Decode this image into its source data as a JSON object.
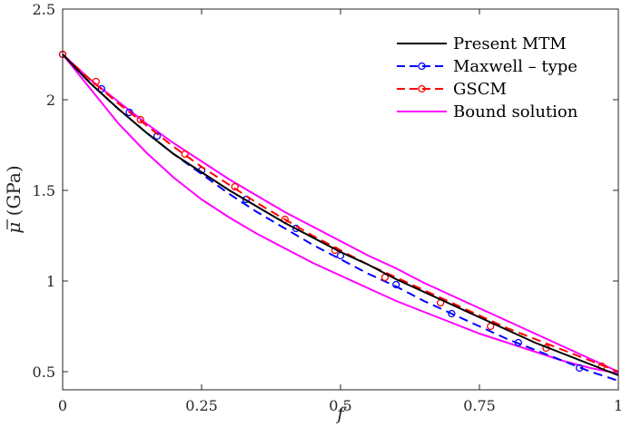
{
  "chart_data": {
    "type": "line",
    "xlabel": "f",
    "ylabel_symbol": "μ",
    "ylabel_unit": "(GPa)",
    "xlim": [
      0,
      1
    ],
    "ylim": [
      0.4,
      2.5
    ],
    "xticks": [
      0,
      0.25,
      0.5,
      0.75,
      1
    ],
    "xtick_labels": [
      "0",
      "0.25",
      "0.5",
      "0.75",
      "1"
    ],
    "yticks": [
      0.5,
      1,
      1.5,
      2,
      2.5
    ],
    "ytick_labels": [
      "0.5",
      "1",
      "1.5",
      "2",
      "2.5"
    ],
    "legend_position": "top-right",
    "series": [
      {
        "name": "Present MTM",
        "color": "#000000",
        "dash": "none",
        "marker": "none",
        "x": [
          0,
          0.05,
          0.1,
          0.15,
          0.2,
          0.25,
          0.3,
          0.35,
          0.4,
          0.45,
          0.5,
          0.55,
          0.6,
          0.65,
          0.7,
          0.75,
          0.8,
          0.85,
          0.9,
          0.95,
          1
        ],
        "y": [
          2.25,
          2.09,
          1.95,
          1.82,
          1.7,
          1.6,
          1.5,
          1.41,
          1.32,
          1.24,
          1.16,
          1.09,
          1.01,
          0.94,
          0.87,
          0.8,
          0.73,
          0.66,
          0.6,
          0.54,
          0.48
        ]
      },
      {
        "name": "Maxwell – type",
        "color": "#0000ff",
        "dash": "dashed",
        "marker": "circle",
        "x": [
          0,
          0.05,
          0.1,
          0.15,
          0.2,
          0.25,
          0.3,
          0.35,
          0.4,
          0.45,
          0.5,
          0.55,
          0.6,
          0.65,
          0.7,
          0.75,
          0.8,
          0.85,
          0.9,
          0.95,
          1
        ],
        "y": [
          2.25,
          2.09,
          1.95,
          1.82,
          1.7,
          1.59,
          1.48,
          1.38,
          1.29,
          1.2,
          1.12,
          1.04,
          0.97,
          0.89,
          0.82,
          0.75,
          0.68,
          0.62,
          0.56,
          0.5,
          0.45
        ],
        "marker_x": [
          0,
          0.07,
          0.12,
          0.17,
          0.25,
          0.33,
          0.42,
          0.5,
          0.6,
          0.7,
          0.82,
          0.93
        ],
        "marker_y": [
          2.25,
          2.06,
          1.93,
          1.8,
          1.61,
          1.45,
          1.29,
          1.14,
          0.98,
          0.82,
          0.66,
          0.52
        ]
      },
      {
        "name": "GSCM",
        "color": "#ff0000",
        "dash": "dashed",
        "marker": "circle",
        "x": [
          0,
          0.05,
          0.1,
          0.15,
          0.2,
          0.25,
          0.3,
          0.35,
          0.4,
          0.45,
          0.5,
          0.55,
          0.6,
          0.65,
          0.7,
          0.75,
          0.8,
          0.85,
          0.9,
          0.95,
          1
        ],
        "y": [
          2.25,
          2.11,
          1.98,
          1.86,
          1.74,
          1.63,
          1.53,
          1.43,
          1.34,
          1.25,
          1.17,
          1.09,
          1.02,
          0.95,
          0.88,
          0.81,
          0.74,
          0.68,
          0.62,
          0.56,
          0.5
        ],
        "marker_x": [
          0,
          0.06,
          0.14,
          0.22,
          0.31,
          0.4,
          0.49,
          0.58,
          0.68,
          0.77,
          0.87,
          0.97
        ],
        "marker_y": [
          2.25,
          2.1,
          1.89,
          1.7,
          1.52,
          1.34,
          1.17,
          1.02,
          0.88,
          0.75,
          0.63,
          0.53
        ]
      },
      {
        "name": "Bound solution",
        "color": "#ff00ff",
        "dash": "none",
        "marker": "none",
        "x": [
          0,
          0.05,
          0.1,
          0.15,
          0.2,
          0.25,
          0.3,
          0.35,
          0.4,
          0.45,
          0.5,
          0.55,
          0.6,
          0.65,
          0.7,
          0.75,
          0.8,
          0.85,
          0.9,
          0.95,
          1
        ],
        "y": [
          2.25,
          2.11,
          1.99,
          1.87,
          1.76,
          1.66,
          1.56,
          1.47,
          1.38,
          1.3,
          1.22,
          1.14,
          1.07,
          0.99,
          0.92,
          0.85,
          0.78,
          0.71,
          0.64,
          0.57,
          0.5
        ]
      },
      {
        "name": "Bound solution (lower)",
        "color": "#ff00ff",
        "dash": "none",
        "marker": "none",
        "legend": false,
        "x": [
          0,
          0.05,
          0.1,
          0.15,
          0.2,
          0.25,
          0.3,
          0.35,
          0.4,
          0.45,
          0.5,
          0.55,
          0.6,
          0.65,
          0.7,
          0.75,
          0.8,
          0.85,
          0.9,
          0.95,
          1
        ],
        "y": [
          2.25,
          2.06,
          1.87,
          1.71,
          1.57,
          1.45,
          1.35,
          1.26,
          1.18,
          1.1,
          1.03,
          0.96,
          0.89,
          0.83,
          0.77,
          0.71,
          0.66,
          0.61,
          0.56,
          0.52,
          0.49
        ]
      }
    ]
  }
}
